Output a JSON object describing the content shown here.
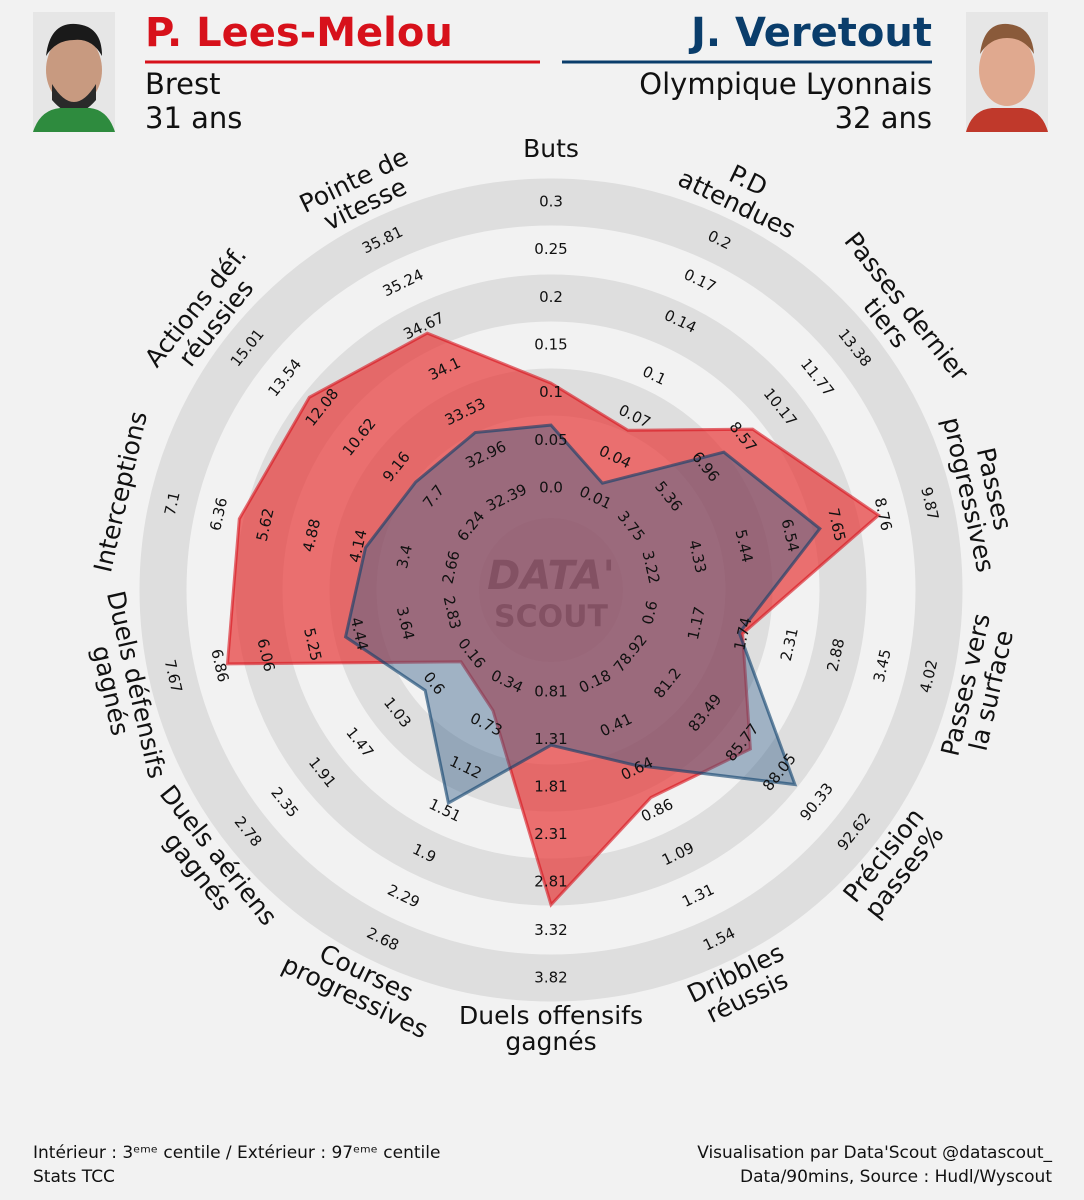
{
  "chart_data": {
    "type": "radar",
    "series": [
      {
        "name": "P. Lees-Melou",
        "club": "Brest",
        "age": "31 ans",
        "color": "#d7111b",
        "fill": "rgba(230,60,60,0.72)",
        "values": [
          0.11,
          0.06,
          9.0,
          8.66,
          1.73,
          86.25,
          0.79,
          3.05,
          0.6,
          0.28,
          6.72,
          6.04,
          12.59,
          34.58
        ]
      },
      {
        "name": "J. Veretout",
        "club": "Olympique Lyonnais",
        "age": "32 ans",
        "color": "#0a3d6b",
        "fill": "rgba(60,100,140,0.45)",
        "values": [
          0.066,
          0.021,
          7.76,
          7.26,
          1.69,
          88.98,
          0.62,
          1.37,
          1.44,
          0.7,
          4.67,
          4.03,
          8.42,
          33.26
        ]
      }
    ],
    "axes": [
      {
        "label": "Buts",
        "lim": [
          0,
          0.3
        ],
        "ticks": [
          {
            "value": 0,
            "label": "0.0"
          },
          0.05,
          0.1,
          0.15,
          0.2,
          0.25,
          0.3
        ]
      },
      {
        "label": "P.D\nattendues",
        "lim": [
          0.01,
          0.2
        ],
        "ticks": [
          0.01,
          0.04,
          0.07,
          0.1,
          0.14,
          0.17,
          0.2
        ]
      },
      {
        "label": "Passes dernier\ntiers",
        "lim": [
          3.75,
          13.38
        ],
        "ticks": [
          3.75,
          5.36,
          6.96,
          8.57,
          10.17,
          11.77,
          13.38
        ]
      },
      {
        "label": "Passes\nprogressives",
        "lim": [
          3.22,
          9.87
        ],
        "ticks": [
          3.22,
          4.33,
          5.44,
          6.54,
          7.65,
          8.76,
          9.87
        ]
      },
      {
        "label": "Passes vers\nla surface",
        "lim": [
          0.6,
          4.02
        ],
        "ticks": [
          0.6,
          1.17,
          1.74,
          2.31,
          2.88,
          3.45,
          4.02
        ]
      },
      {
        "label": "Précision\npasses%",
        "lim": [
          78.92,
          92.62
        ],
        "ticks": [
          78.92,
          81.2,
          83.49,
          85.77,
          88.05,
          90.33,
          92.62
        ]
      },
      {
        "label": "Dribbles\nréussis",
        "lim": [
          0.18,
          1.54
        ],
        "ticks": [
          0.18,
          0.41,
          0.64,
          0.86,
          1.09,
          1.31,
          1.54
        ]
      },
      {
        "label": "Duels offensifs\ngagnés",
        "lim": [
          0.81,
          3.82
        ],
        "ticks": [
          0.81,
          1.31,
          1.81,
          2.31,
          2.81,
          3.32,
          3.82
        ]
      },
      {
        "label": "Courses\nprogressives",
        "lim": [
          0.34,
          2.68
        ],
        "ticks": [
          0.34,
          0.73,
          1.12,
          1.51,
          1.9,
          2.29,
          2.68
        ]
      },
      {
        "label": "Duels aériens\ngagnés",
        "lim": [
          0.16,
          2.78
        ],
        "ticks": [
          0.16,
          0.6,
          1.03,
          1.47,
          1.91,
          2.35,
          2.78
        ]
      },
      {
        "label": "Duels défensifs\ngagnés",
        "lim": [
          2.83,
          7.67
        ],
        "ticks": [
          2.83,
          3.64,
          4.44,
          5.25,
          6.06,
          6.86,
          7.67
        ]
      },
      {
        "label": "Interceptions",
        "lim": [
          2.66,
          7.1
        ],
        "ticks": [
          2.66,
          3.4,
          4.14,
          4.88,
          5.62,
          6.36,
          7.1
        ]
      },
      {
        "label": "Actions déf.\nréussies",
        "lim": [
          6.24,
          15.01
        ],
        "ticks": [
          6.24,
          7.7,
          9.16,
          10.62,
          12.08,
          13.54,
          15.01
        ]
      },
      {
        "label": "Pointe de\nvitesse",
        "lim": [
          32.39,
          35.81
        ],
        "ticks": [
          32.39,
          32.96,
          33.53,
          34.1,
          34.67,
          35.24,
          35.81
        ]
      }
    ],
    "watermark": [
      "DATA'",
      "SCOUT"
    ],
    "footer_left": [
      "Intérieur : 3ᵉᵐᵉ centile / Extérieur : 97ᵉᵐᵉ centile",
      "Stats TCC"
    ],
    "footer_right": [
      "Visualisation par Data'Scout @datascout_",
      "Data/90mins, Source : Hudl/Wyscout"
    ]
  }
}
